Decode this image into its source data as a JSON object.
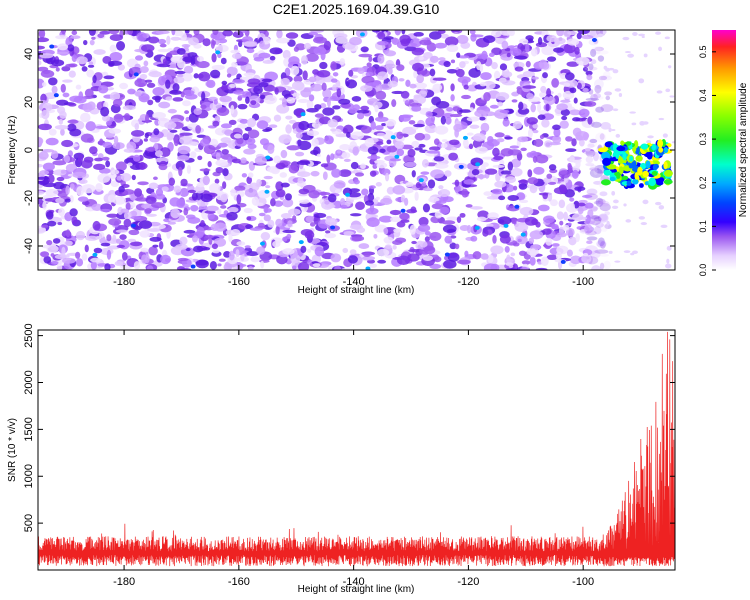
{
  "title": "C2E1.2025.169.04.39.G10",
  "colors": {
    "snr_line": "#ee2222",
    "spec_low": "#f4eaff",
    "spec_mid": "#6633dd",
    "spec_high": "#0000ff"
  },
  "chart_data": [
    {
      "type": "heatmap",
      "xlabel": "Height of straight line (km)",
      "ylabel": "Frequency (Hz)",
      "xlim": [
        -195,
        -84
      ],
      "ylim": [
        -50,
        50
      ],
      "x_ticks": [
        "-180",
        "-160",
        "-140",
        "-120",
        "-100"
      ],
      "x_tick_values": [
        -180,
        -160,
        -140,
        -120,
        -100
      ],
      "y_ticks": [
        "40",
        "20",
        "0",
        "-20",
        "-40"
      ],
      "y_tick_values": [
        40,
        20,
        0,
        -20,
        -40
      ],
      "data_cutoff_x": -97,
      "strong_region": {
        "x": [
          -97,
          -85
        ],
        "y": [
          -15,
          3
        ]
      },
      "colorbar": {
        "label": "Normalized spectral amplitude",
        "range": [
          0,
          0.55
        ],
        "ticks": [
          "0.0",
          "0.1",
          "0.2",
          "0.3",
          "0.4",
          "0.5"
        ],
        "tick_values": [
          0.0,
          0.1,
          0.2,
          0.3,
          0.4,
          0.5
        ]
      }
    },
    {
      "type": "line",
      "xlabel": "Height of straight line (km)",
      "ylabel": "SNR (10 * v/v)",
      "xlim": [
        -195,
        -84
      ],
      "ylim": [
        0,
        2560
      ],
      "x_ticks": [
        "-180",
        "-160",
        "-140",
        "-120",
        "-100"
      ],
      "x_tick_values": [
        -180,
        -160,
        -140,
        -120,
        -100
      ],
      "y_ticks": [
        "2500",
        "2000",
        "1500",
        "1000",
        "500"
      ],
      "y_tick_values": [
        2500,
        2000,
        1500,
        1000,
        500
      ],
      "baseline_level": 200,
      "baseline_max": 480,
      "rise_start": -97,
      "peak_x": -85,
      "peak_y": 2560
    }
  ]
}
